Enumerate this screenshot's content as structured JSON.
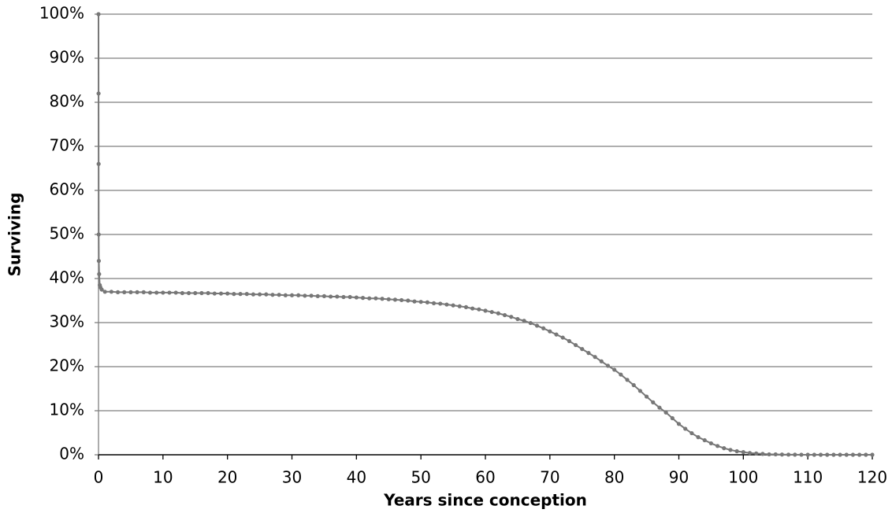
{
  "chart_data": {
    "type": "line",
    "x_label": "Years since conception",
    "y_label": "Surviving",
    "x": [
      0,
      0.01,
      0.02,
      0.03,
      0.05,
      0.1,
      0.2,
      0.3,
      0.5,
      1,
      2,
      3,
      4,
      5,
      6,
      7,
      8,
      9,
      10,
      11,
      12,
      13,
      14,
      15,
      16,
      17,
      18,
      19,
      20,
      21,
      22,
      23,
      24,
      25,
      26,
      27,
      28,
      29,
      30,
      31,
      32,
      33,
      34,
      35,
      36,
      37,
      38,
      39,
      40,
      41,
      42,
      43,
      44,
      45,
      46,
      47,
      48,
      49,
      50,
      51,
      52,
      53,
      54,
      55,
      56,
      57,
      58,
      59,
      60,
      61,
      62,
      63,
      64,
      65,
      66,
      67,
      68,
      69,
      70,
      71,
      72,
      73,
      74,
      75,
      76,
      77,
      78,
      79,
      80,
      81,
      82,
      83,
      84,
      85,
      86,
      87,
      88,
      89,
      90,
      91,
      92,
      93,
      94,
      95,
      96,
      97,
      98,
      99,
      100,
      101,
      102,
      103,
      104,
      105,
      106,
      107,
      108,
      109,
      110,
      111,
      112,
      113,
      114,
      115,
      116,
      117,
      118,
      119,
      120
    ],
    "values": [
      100,
      82,
      66,
      50,
      44,
      41,
      38.5,
      38,
      37.5,
      37.0,
      37.0,
      36.9,
      36.9,
      36.9,
      36.9,
      36.9,
      36.8,
      36.8,
      36.8,
      36.8,
      36.8,
      36.7,
      36.7,
      36.7,
      36.7,
      36.7,
      36.6,
      36.6,
      36.6,
      36.5,
      36.5,
      36.5,
      36.4,
      36.4,
      36.4,
      36.3,
      36.3,
      36.2,
      36.2,
      36.2,
      36.1,
      36.1,
      36.0,
      36.0,
      35.9,
      35.9,
      35.8,
      35.8,
      35.7,
      35.6,
      35.5,
      35.5,
      35.4,
      35.3,
      35.2,
      35.1,
      35.0,
      34.8,
      34.7,
      34.6,
      34.4,
      34.3,
      34.1,
      33.9,
      33.7,
      33.5,
      33.2,
      33.0,
      32.7,
      32.4,
      32.1,
      31.7,
      31.3,
      30.8,
      30.4,
      29.9,
      29.3,
      28.7,
      28.0,
      27.3,
      26.6,
      25.8,
      24.9,
      24.0,
      23.1,
      22.2,
      21.2,
      20.2,
      19.3,
      18.2,
      17.0,
      15.8,
      14.5,
      13.2,
      11.9,
      10.7,
      9.6,
      8.3,
      7.0,
      5.9,
      4.9,
      4.0,
      3.3,
      2.6,
      2.0,
      1.5,
      1.1,
      0.8,
      0.6,
      0.4,
      0.3,
      0.2,
      0.1,
      0.1,
      0.05,
      0.03,
      0.02,
      0.01,
      0,
      0,
      0,
      0,
      0,
      0,
      0,
      0,
      0,
      0,
      0
    ],
    "color": "#777777",
    "xlim": [
      0,
      120
    ],
    "xticks": [
      0,
      10,
      20,
      30,
      40,
      50,
      60,
      70,
      80,
      90,
      100,
      110,
      120
    ],
    "ylim": [
      0,
      100
    ],
    "yticks": [
      {
        "value": 0,
        "label": "0%"
      },
      {
        "value": 10,
        "label": "10%"
      },
      {
        "value": 20,
        "label": "20%"
      },
      {
        "value": 30,
        "label": "30%"
      },
      {
        "value": 40,
        "label": "40%"
      },
      {
        "value": 50,
        "label": "50%"
      },
      {
        "value": 60,
        "label": "60%"
      },
      {
        "value": 70,
        "label": "70%"
      },
      {
        "value": 80,
        "label": "80%"
      },
      {
        "value": 90,
        "label": "90%"
      },
      {
        "value": 100,
        "label": "100%"
      }
    ],
    "grid": true
  }
}
